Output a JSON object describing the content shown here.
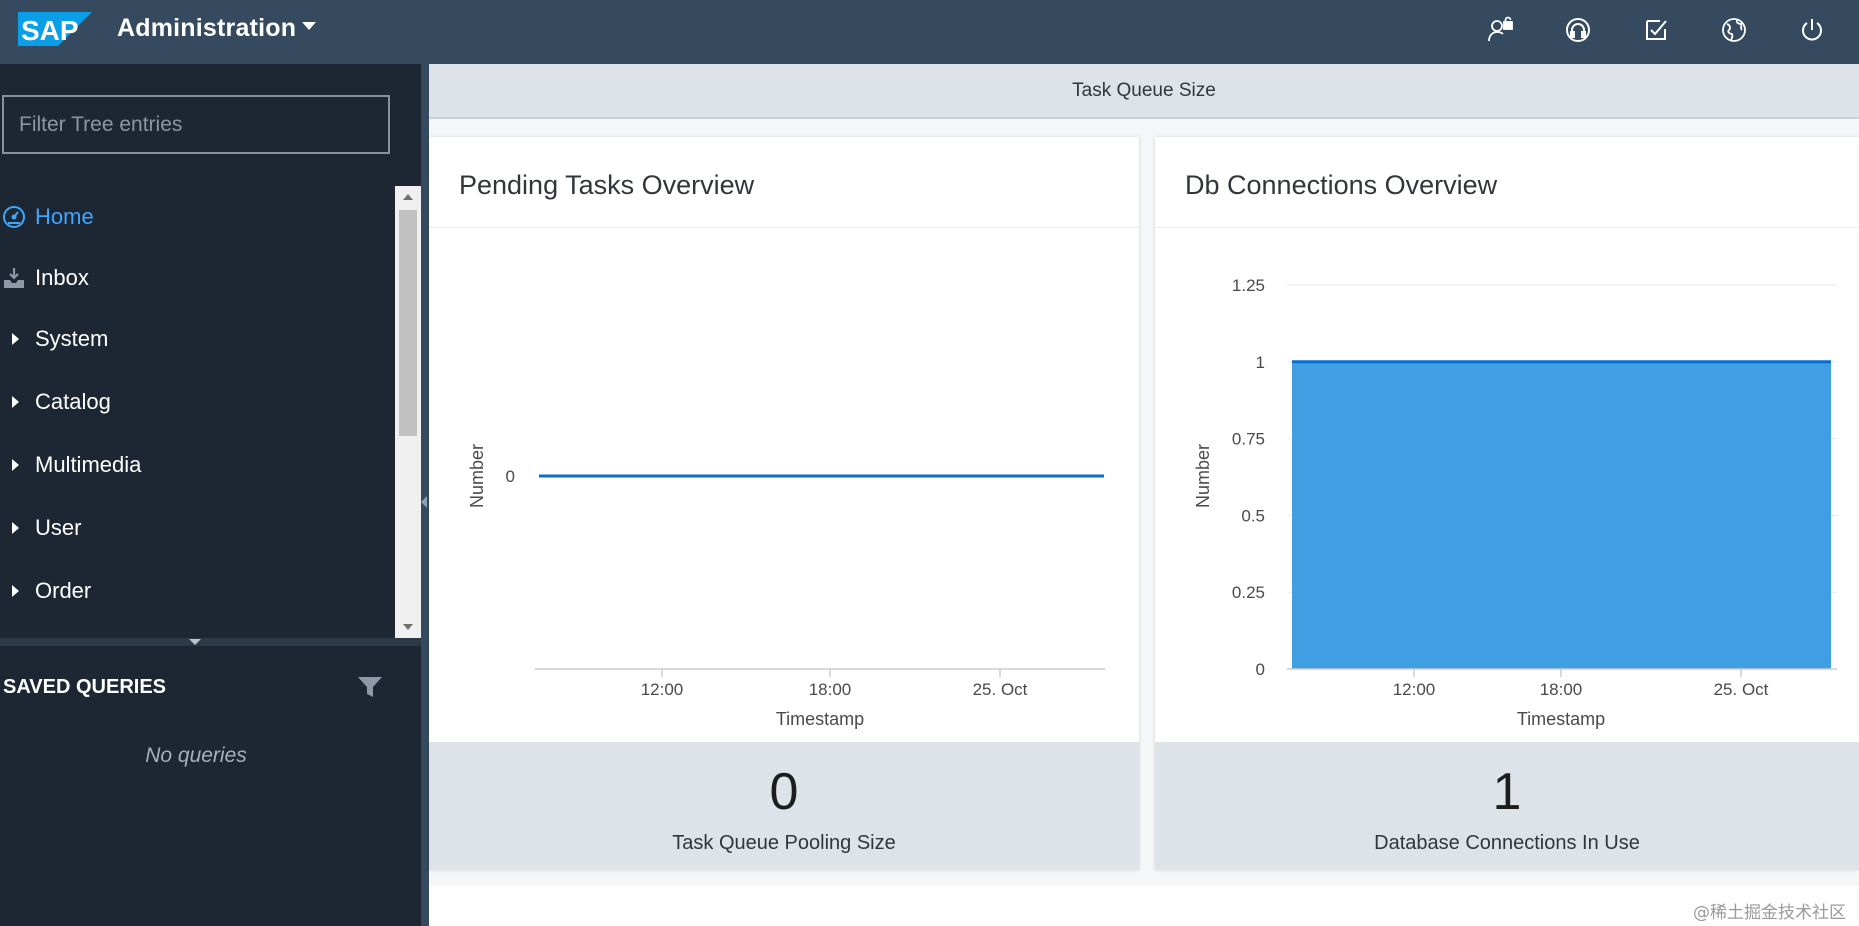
{
  "header": {
    "logo_text": "SAP",
    "title": "Administration",
    "icons": [
      "user-lock-icon",
      "headset-icon",
      "checklist-icon",
      "globe-icon",
      "power-icon"
    ]
  },
  "sidebar": {
    "filter_placeholder": "Filter Tree entries",
    "items": [
      {
        "label": "Home",
        "icon": "home-dashboard-icon",
        "active": true
      },
      {
        "label": "Inbox",
        "icon": "inbox-icon"
      },
      {
        "label": "System",
        "icon": "expand-arrow-icon"
      },
      {
        "label": "Catalog",
        "icon": "expand-arrow-icon"
      },
      {
        "label": "Multimedia",
        "icon": "expand-arrow-icon"
      },
      {
        "label": "User",
        "icon": "expand-arrow-icon"
      },
      {
        "label": "Order",
        "icon": "expand-arrow-icon"
      }
    ],
    "saved_queries_title": "SAVED QUERIES",
    "no_queries": "No queries"
  },
  "main": {
    "section_title": "Task Queue Size",
    "panels": [
      {
        "title": "Pending Tasks Overview",
        "value": "0",
        "value_label": "Task Queue Pooling Size"
      },
      {
        "title": "Db Connections Overview",
        "value": "1",
        "value_label": "Database Connections In Use"
      }
    ]
  },
  "colors": {
    "accent": "#3ea6ff",
    "series": "#0a6ed1",
    "area": "#409fe3",
    "shell": "#354a5f",
    "sidebar": "#1d2733"
  },
  "watermark": "@稀土掘金技术社区",
  "chart_data": [
    {
      "type": "line",
      "title": "Pending Tasks Overview",
      "xlabel": "Timestamp",
      "ylabel": "Number",
      "x_ticks": [
        "12:00",
        "18:00",
        "25. Oct"
      ],
      "y_ticks": [
        "0"
      ],
      "series": [
        {
          "values": [
            0,
            0
          ]
        }
      ],
      "grid": false
    },
    {
      "type": "area",
      "title": "Db Connections Overview",
      "xlabel": "Timestamp",
      "ylabel": "Number",
      "x_ticks": [
        "12:00",
        "18:00",
        "25. Oct"
      ],
      "y_ticks": [
        "0",
        "0.25",
        "0.5",
        "0.75",
        "1",
        "1.25"
      ],
      "ylim": [
        0,
        1.25
      ],
      "series": [
        {
          "values": [
            1,
            1
          ]
        }
      ],
      "grid": true
    }
  ]
}
